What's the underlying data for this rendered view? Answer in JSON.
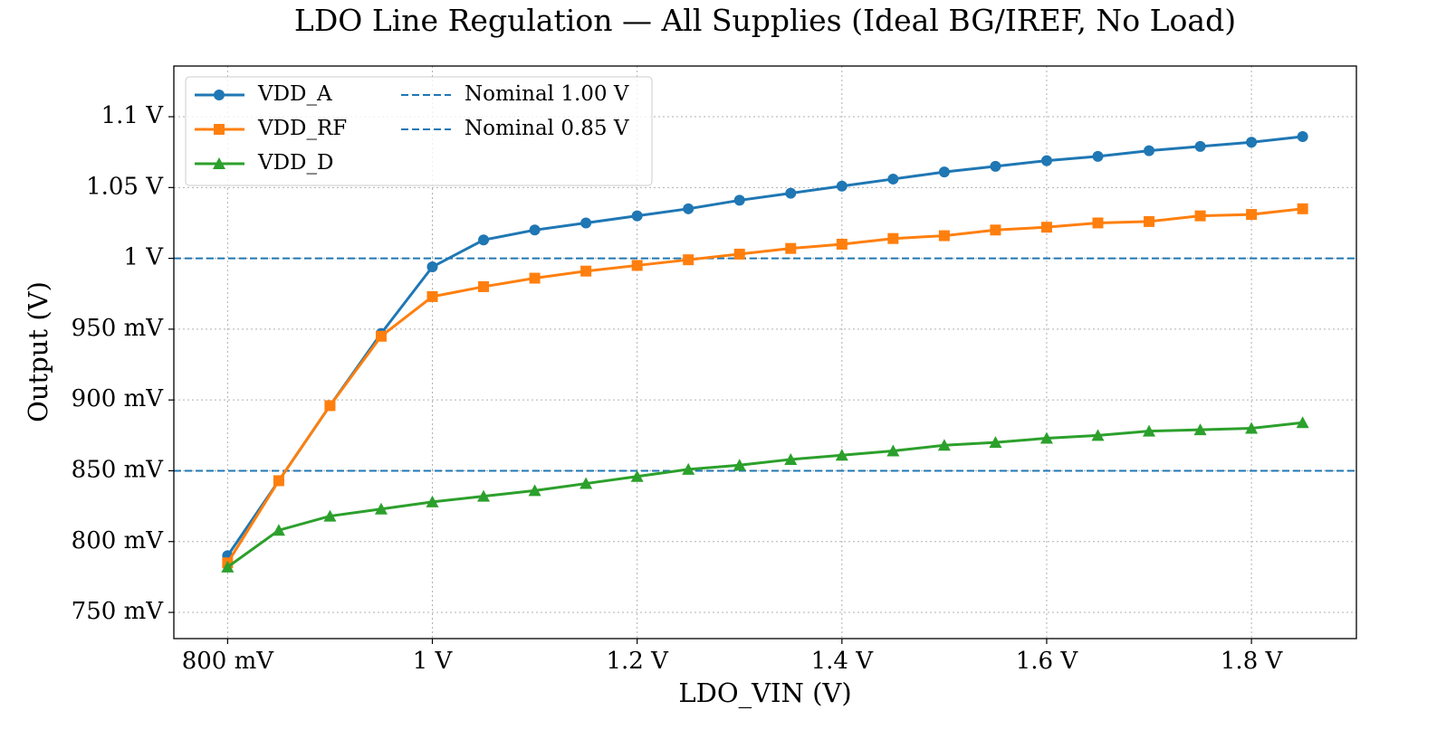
{
  "chart_data": {
    "type": "line",
    "title": "LDO Line Regulation — All Supplies (Ideal BG/IREF, No Load)",
    "x_label": "LDO_VIN (V)",
    "y_label": "Output (V)",
    "x": [
      0.8,
      0.85,
      0.9,
      0.95,
      1.0,
      1.05,
      1.1,
      1.15,
      1.2,
      1.25,
      1.3,
      1.35,
      1.4,
      1.45,
      1.5,
      1.55,
      1.6,
      1.65,
      1.7,
      1.75,
      1.8,
      1.85
    ],
    "series": [
      {
        "name": "VDD_A",
        "color": "#1f77b4",
        "marker": "circle",
        "values": [
          0.79,
          0.843,
          0.896,
          0.947,
          0.994,
          1.013,
          1.02,
          1.025,
          1.03,
          1.035,
          1.041,
          1.046,
          1.051,
          1.056,
          1.061,
          1.065,
          1.069,
          1.072,
          1.076,
          1.079,
          1.082,
          1.086
        ]
      },
      {
        "name": "VDD_RF",
        "color": "#ff7f0e",
        "marker": "square",
        "values": [
          0.785,
          0.843,
          0.896,
          0.945,
          0.973,
          0.98,
          0.986,
          0.991,
          0.995,
          0.999,
          1.003,
          1.007,
          1.01,
          1.014,
          1.016,
          1.02,
          1.022,
          1.025,
          1.026,
          1.03,
          1.031,
          1.035
        ]
      },
      {
        "name": "VDD_D",
        "color": "#2ca02c",
        "marker": "triangle",
        "values": [
          0.782,
          0.808,
          0.818,
          0.823,
          0.828,
          0.832,
          0.836,
          0.841,
          0.846,
          0.851,
          0.854,
          0.858,
          0.861,
          0.864,
          0.868,
          0.87,
          0.873,
          0.875,
          0.878,
          0.879,
          0.88,
          0.884
        ]
      }
    ],
    "reference_lines": [
      {
        "name": "Nominal 1.00 V",
        "value": 1.0,
        "color": "#1f77b4"
      },
      {
        "name": "Nominal 0.85 V",
        "value": 0.85,
        "color": "#1f77b4"
      }
    ],
    "xlim": [
      0.7475,
      1.9025
    ],
    "ylim": [
      0.7315,
      1.1358
    ],
    "xticks": [
      {
        "value": 0.8,
        "label": "800 mV"
      },
      {
        "value": 1.0,
        "label": "1 V"
      },
      {
        "value": 1.2,
        "label": "1.2 V"
      },
      {
        "value": 1.4,
        "label": "1.4 V"
      },
      {
        "value": 1.6,
        "label": "1.6 V"
      },
      {
        "value": 1.8,
        "label": "1.8 V"
      }
    ],
    "yticks": [
      {
        "value": 0.75,
        "label": "750 mV"
      },
      {
        "value": 0.8,
        "label": "800 mV"
      },
      {
        "value": 0.85,
        "label": "850 mV"
      },
      {
        "value": 0.9,
        "label": "900 mV"
      },
      {
        "value": 0.95,
        "label": "950 mV"
      },
      {
        "value": 1.0,
        "label": "1 V"
      },
      {
        "value": 1.05,
        "label": "1.05 V"
      },
      {
        "value": 1.1,
        "label": "1.1 V"
      }
    ],
    "grid": true,
    "legend_loc": "upper left"
  }
}
